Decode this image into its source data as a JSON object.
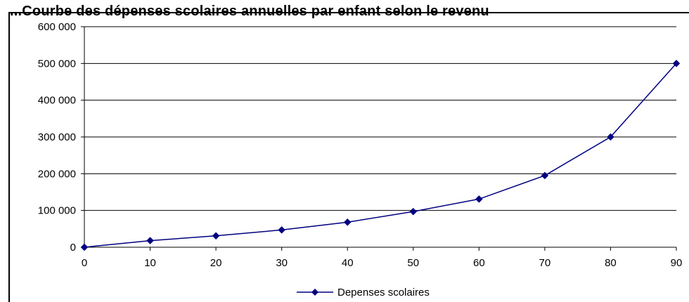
{
  "chart_data": {
    "type": "line",
    "title": "...Courbe des dépenses scolaires annuelles par enfant selon le revenu",
    "x": [
      0,
      10,
      20,
      30,
      40,
      50,
      60,
      70,
      80,
      90
    ],
    "series": [
      {
        "name": "Depenses scolaires",
        "values": [
          0,
          18000,
          31000,
          47000,
          68000,
          97000,
          131000,
          195000,
          300000,
          500000
        ],
        "color": "#000080",
        "marker": "diamond"
      }
    ],
    "x_ticks": [
      "0",
      "10",
      "20",
      "30",
      "40",
      "50",
      "60",
      "70",
      "80",
      "90"
    ],
    "y_ticks": [
      "0",
      "100 000",
      "200 000",
      "300 000",
      "400 000",
      "500 000",
      "600 000"
    ],
    "xlim": [
      0,
      90
    ],
    "ylim": [
      0,
      600000
    ],
    "xlabel": "",
    "ylabel": "",
    "grid": "horizontal",
    "legend_position": "bottom"
  }
}
